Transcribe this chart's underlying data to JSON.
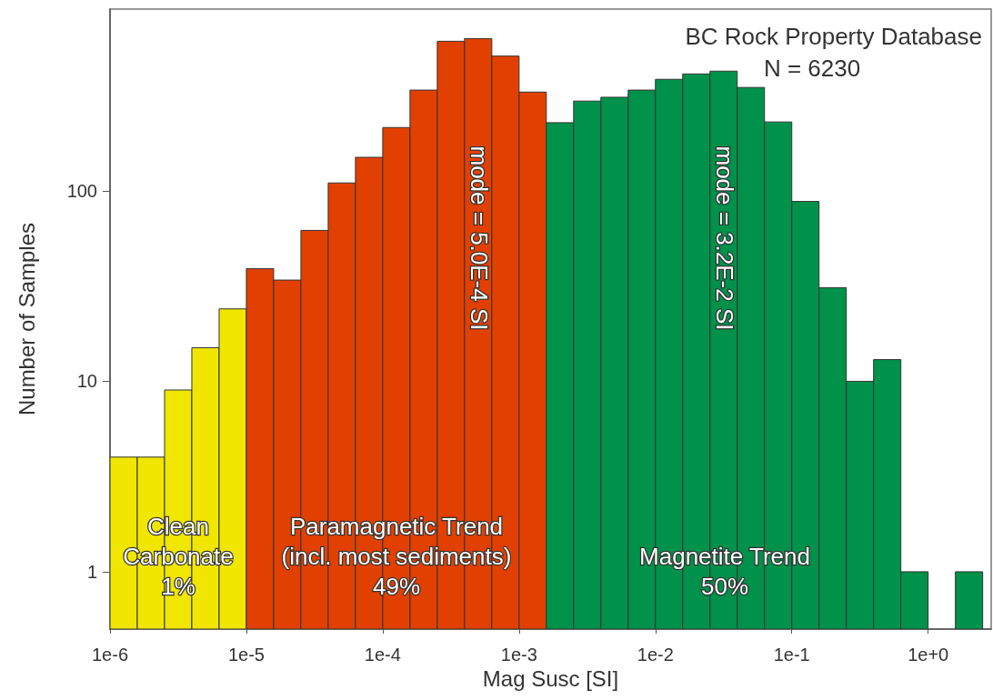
{
  "chart_data": {
    "type": "histogram",
    "xlabel": "Mag Susc [SI]",
    "ylabel": "Number of Samples",
    "bins": [
      1e-06,
      1.585e-06,
      2.512e-06,
      3.981e-06,
      6.31e-06,
      1e-05,
      1.585e-05,
      2.512e-05,
      3.981e-05,
      6.31e-05,
      0.0001,
      0.0001585,
      0.0002512,
      0.0003981,
      0.000631,
      0.001,
      0.001585,
      0.002512,
      0.003981,
      0.00631,
      0.01,
      0.01585,
      0.02512,
      0.03981,
      0.0631,
      0.1,
      0.1585,
      0.2512,
      0.3981,
      0.631,
      1,
      1.585,
      2.512
    ],
    "values": [
      4,
      4,
      9,
      15,
      24,
      39,
      34,
      62,
      110,
      150,
      215,
      338,
      610,
      630,
      510,
      330,
      228,
      296,
      310,
      338,
      385,
      411,
      425,
      349,
      230,
      88,
      31,
      10,
      13,
      1,
      null,
      1
    ],
    "colors": [
      "#f0e600",
      "#f0e600",
      "#f0e600",
      "#f0e600",
      "#f0e600",
      "#e24000",
      "#e24000",
      "#e24000",
      "#e24000",
      "#e24000",
      "#e24000",
      "#e24000",
      "#e24000",
      "#e24000",
      "#e24000",
      "#e24000",
      "#00914a",
      "#00914a",
      "#00914a",
      "#00914a",
      "#00914a",
      "#00914a",
      "#00914a",
      "#00914a",
      "#00914a",
      "#00914a",
      "#00914a",
      "#00914a",
      "#00914a",
      "#00914a",
      null,
      "#00914a"
    ],
    "log": "xy",
    "xlim": [
      1e-06,
      2.9
    ],
    "xticks": [
      {
        "value": 1e-06,
        "label": "1e-6"
      },
      {
        "value": 1e-05,
        "label": "1e-5"
      },
      {
        "value": 0.0001,
        "label": "1e-4"
      },
      {
        "value": 0.001,
        "label": "1e-3"
      },
      {
        "value": 0.01,
        "label": "1e-2"
      },
      {
        "value": 0.1,
        "label": "1e-1"
      },
      {
        "value": 1,
        "label": "1e+0"
      }
    ],
    "ylim": [
      0.5,
      900
    ],
    "yticks": [
      1,
      10,
      100
    ],
    "grid": false,
    "annotations": [
      "BC Rock Property Database",
      "N = 6230",
      "mode = 5.0E-4 SI",
      "mode = 3.2E-2 SI",
      "Clean\nCarbonate\n1%",
      "Paramagnetic Trend\n(incl. most sediments)\n49%",
      "Magnetite Trend\n50%"
    ]
  }
}
